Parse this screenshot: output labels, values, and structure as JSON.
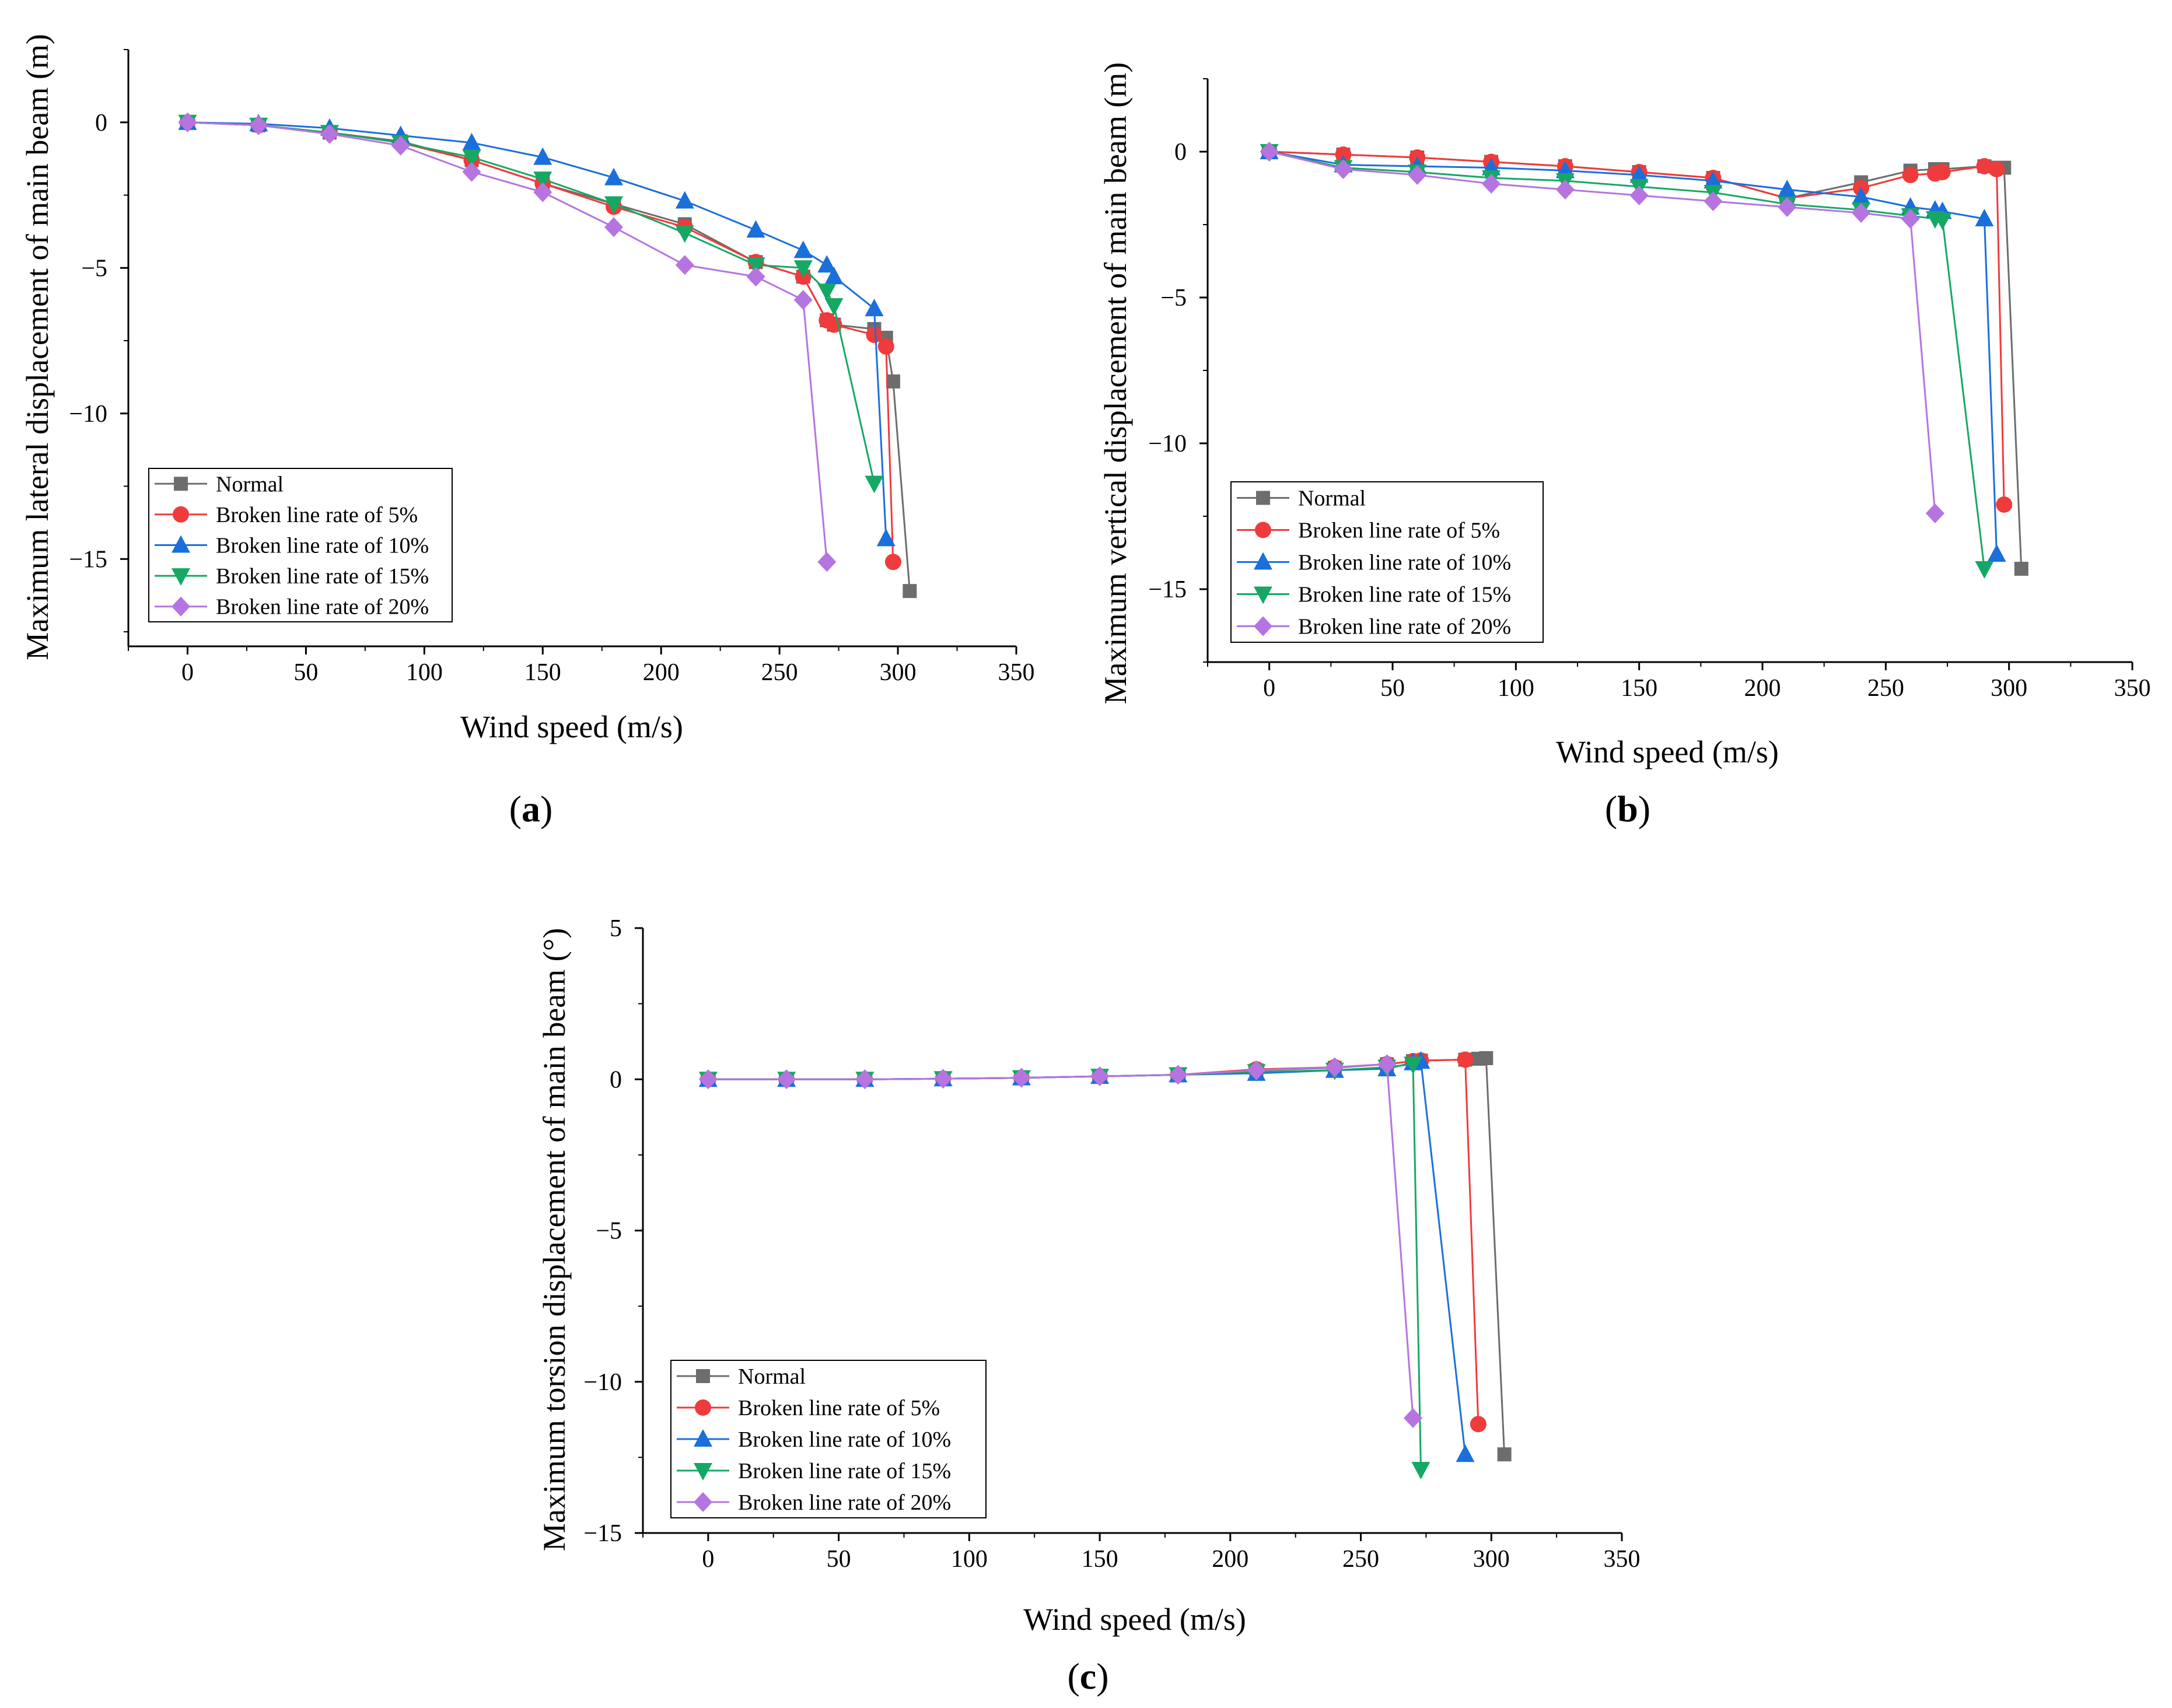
{
  "figure": {
    "legend_labels": [
      "Normal",
      "Broken line rate of 5%",
      "Broken line rate of 10%",
      "Broken line rate of 15%",
      "Broken line rate of 20%"
    ]
  },
  "chart_data": [
    {
      "id": "a",
      "type": "line",
      "panel_label": "a",
      "title": "",
      "xlabel": "Wind speed (m/s)",
      "ylabel": "Maximum lateral displacement of main beam (m)",
      "xlim": [
        -25,
        350
      ],
      "ylim": [
        -18,
        2.5
      ],
      "xticks": [
        0,
        50,
        100,
        150,
        200,
        250,
        300,
        350
      ],
      "yticks": [
        0,
        -5,
        -10,
        -15
      ],
      "series": [
        {
          "name": "Normal",
          "color": "#6d6d6d",
          "marker": "square",
          "x": [
            0,
            30,
            60,
            90,
            120,
            150,
            180,
            210,
            240,
            260,
            270,
            273,
            290,
            295,
            298,
            305
          ],
          "y": [
            0,
            -0.1,
            -0.35,
            -0.65,
            -1.3,
            -2.1,
            -2.8,
            -3.5,
            -4.8,
            -5.3,
            -6.8,
            -6.95,
            -7.1,
            -7.4,
            -8.9,
            -16.1
          ]
        },
        {
          "name": "Broken line rate of 5%",
          "color": "#ef3b3b",
          "marker": "circle",
          "x": [
            0,
            30,
            60,
            90,
            120,
            150,
            180,
            210,
            240,
            260,
            270,
            273,
            290,
            295,
            298
          ],
          "y": [
            0,
            -0.1,
            -0.35,
            -0.7,
            -1.3,
            -2.1,
            -2.9,
            -3.6,
            -4.8,
            -5.3,
            -6.8,
            -6.95,
            -7.3,
            -7.7,
            -15.1
          ]
        },
        {
          "name": "Broken line rate of 10%",
          "color": "#1a6fdc",
          "marker": "triangle-up",
          "x": [
            0,
            30,
            60,
            90,
            120,
            150,
            180,
            210,
            240,
            260,
            270,
            273,
            290,
            295
          ],
          "y": [
            0,
            -0.05,
            -0.2,
            -0.45,
            -0.7,
            -1.2,
            -1.9,
            -2.7,
            -3.7,
            -4.4,
            -4.9,
            -5.3,
            -6.4,
            -14.3
          ]
        },
        {
          "name": "Broken line rate of 15%",
          "color": "#15a864",
          "marker": "triangle-down",
          "x": [
            0,
            30,
            60,
            90,
            120,
            150,
            180,
            210,
            240,
            260,
            270,
            273,
            290
          ],
          "y": [
            0,
            -0.1,
            -0.35,
            -0.7,
            -1.2,
            -1.95,
            -2.8,
            -3.8,
            -4.9,
            -5.0,
            -5.8,
            -6.3,
            -12.4
          ]
        },
        {
          "name": "Broken line rate of 20%",
          "color": "#b574e0",
          "marker": "diamond",
          "x": [
            0,
            30,
            60,
            90,
            120,
            150,
            180,
            210,
            240,
            260,
            270
          ],
          "y": [
            0,
            -0.1,
            -0.4,
            -0.8,
            -1.7,
            -2.4,
            -3.6,
            -4.9,
            -5.3,
            -6.1,
            -15.1
          ]
        }
      ]
    },
    {
      "id": "b",
      "type": "line",
      "panel_label": "b",
      "title": "",
      "xlabel": "Wind speed (m/s)",
      "ylabel": "Maximum vertical displacement of main beam (m)",
      "xlim": [
        -25,
        350
      ],
      "ylim": [
        -17.5,
        2.5
      ],
      "xticks": [
        0,
        50,
        100,
        150,
        200,
        250,
        300,
        350
      ],
      "yticks": [
        0,
        -5,
        -10,
        -15
      ],
      "series": [
        {
          "name": "Normal",
          "color": "#6d6d6d",
          "marker": "square",
          "x": [
            0,
            30,
            60,
            90,
            120,
            150,
            180,
            210,
            240,
            260,
            270,
            273,
            290,
            295,
            298,
            305
          ],
          "y": [
            0,
            -0.1,
            -0.2,
            -0.35,
            -0.5,
            -0.7,
            -0.9,
            -1.6,
            -1.05,
            -0.65,
            -0.6,
            -0.6,
            -0.5,
            -0.55,
            -0.55,
            -14.3
          ]
        },
        {
          "name": "Broken line rate of 5%",
          "color": "#ef3b3b",
          "marker": "circle",
          "x": [
            0,
            30,
            60,
            90,
            120,
            150,
            180,
            210,
            240,
            260,
            270,
            273,
            290,
            295,
            298
          ],
          "y": [
            0,
            -0.1,
            -0.2,
            -0.35,
            -0.5,
            -0.7,
            -0.9,
            -1.6,
            -1.25,
            -0.8,
            -0.75,
            -0.7,
            -0.5,
            -0.6,
            -12.1
          ]
        },
        {
          "name": "Broken line rate of 10%",
          "color": "#1a6fdc",
          "marker": "triangle-up",
          "x": [
            0,
            30,
            60,
            90,
            120,
            150,
            180,
            210,
            240,
            260,
            270,
            273,
            290,
            295
          ],
          "y": [
            0,
            -0.45,
            -0.5,
            -0.55,
            -0.65,
            -0.8,
            -1.0,
            -1.3,
            -1.55,
            -1.9,
            -2.0,
            -2.05,
            -2.3,
            -13.8
          ]
        },
        {
          "name": "Broken line rate of 15%",
          "color": "#15a864",
          "marker": "triangle-down",
          "x": [
            0,
            30,
            60,
            90,
            120,
            150,
            180,
            210,
            240,
            260,
            270,
            273,
            290
          ],
          "y": [
            0,
            -0.55,
            -0.7,
            -0.9,
            -1.0,
            -1.2,
            -1.4,
            -1.8,
            -2.0,
            -2.2,
            -2.3,
            -2.35,
            -14.3
          ]
        },
        {
          "name": "Broken line rate of 20%",
          "color": "#b574e0",
          "marker": "diamond",
          "x": [
            0,
            30,
            60,
            90,
            120,
            150,
            180,
            210,
            240,
            260,
            270
          ],
          "y": [
            0,
            -0.6,
            -0.8,
            -1.1,
            -1.3,
            -1.5,
            -1.7,
            -1.9,
            -2.1,
            -2.3,
            -12.4
          ]
        }
      ]
    },
    {
      "id": "c",
      "type": "line",
      "panel_label": "c",
      "title": "",
      "xlabel": "Wind speed (m/s)",
      "ylabel": "Maximum torsion displacement of main beam (°)",
      "xlim": [
        -25,
        350
      ],
      "ylim": [
        -15,
        5
      ],
      "xticks": [
        0,
        50,
        100,
        150,
        200,
        250,
        300,
        350
      ],
      "yticks": [
        5,
        0,
        -5,
        -10,
        -15
      ],
      "series": [
        {
          "name": "Normal",
          "color": "#6d6d6d",
          "marker": "square",
          "x": [
            0,
            30,
            60,
            90,
            120,
            150,
            180,
            210,
            240,
            260,
            270,
            273,
            290,
            295,
            298,
            305
          ],
          "y": [
            0,
            0,
            0,
            0.02,
            0.05,
            0.1,
            0.15,
            0.3,
            0.38,
            0.5,
            0.6,
            0.62,
            0.65,
            0.68,
            0.7,
            -12.4
          ]
        },
        {
          "name": "Broken line rate of 5%",
          "color": "#ef3b3b",
          "marker": "circle",
          "x": [
            0,
            30,
            60,
            90,
            120,
            150,
            180,
            210,
            240,
            260,
            270,
            273,
            290,
            295
          ],
          "y": [
            0,
            0,
            0,
            0.02,
            0.05,
            0.1,
            0.15,
            0.33,
            0.4,
            0.5,
            0.6,
            0.62,
            0.65,
            -11.4
          ]
        },
        {
          "name": "Broken line rate of 10%",
          "color": "#1a6fdc",
          "marker": "triangle-up",
          "x": [
            0,
            30,
            60,
            90,
            120,
            150,
            180,
            210,
            240,
            260,
            270,
            273,
            290
          ],
          "y": [
            0,
            0,
            0,
            0.02,
            0.05,
            0.1,
            0.15,
            0.2,
            0.3,
            0.35,
            0.55,
            0.6,
            -12.4
          ]
        },
        {
          "name": "Broken line rate of 15%",
          "color": "#15a864",
          "marker": "triangle-down",
          "x": [
            0,
            30,
            60,
            90,
            120,
            150,
            180,
            210,
            240,
            260,
            270,
            273
          ],
          "y": [
            0,
            0,
            0,
            0.02,
            0.05,
            0.1,
            0.15,
            0.25,
            0.3,
            0.4,
            0.5,
            -12.9
          ]
        },
        {
          "name": "Broken line rate of 20%",
          "color": "#b574e0",
          "marker": "diamond",
          "x": [
            0,
            30,
            60,
            90,
            120,
            150,
            180,
            210,
            240,
            260,
            270
          ],
          "y": [
            0,
            0,
            0,
            0.02,
            0.05,
            0.1,
            0.15,
            0.3,
            0.4,
            0.5,
            -11.2
          ]
        }
      ]
    }
  ]
}
